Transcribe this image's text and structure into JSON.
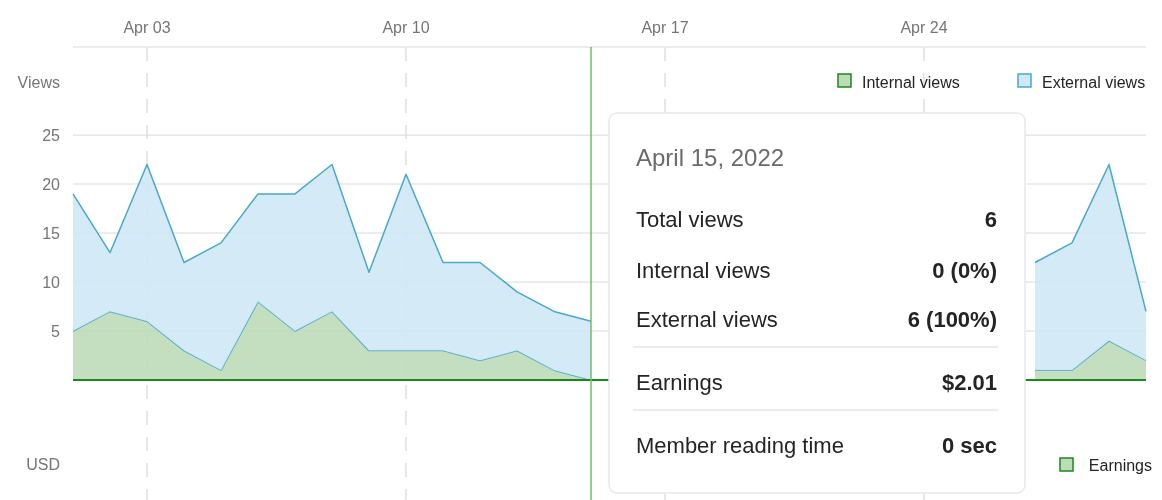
{
  "chart_data": {
    "type": "area",
    "stacked": true,
    "x": [
      "2022-04-01",
      "2022-04-02",
      "2022-04-03",
      "2022-04-04",
      "2022-04-05",
      "2022-04-06",
      "2022-04-07",
      "2022-04-08",
      "2022-04-09",
      "2022-04-10",
      "2022-04-11",
      "2022-04-12",
      "2022-04-13",
      "2022-04-14",
      "2022-04-15",
      "2022-04-16",
      "2022-04-17",
      "2022-04-18",
      "2022-04-19",
      "2022-04-20",
      "2022-04-21",
      "2022-04-22",
      "2022-04-23",
      "2022-04-24",
      "2022-04-25",
      "2022-04-26",
      "2022-04-27",
      "2022-04-28",
      "2022-04-29",
      "2022-04-30"
    ],
    "series": [
      {
        "name": "Internal views",
        "color": "#bcdbb8",
        "values": [
          5,
          7,
          6,
          3,
          1,
          8,
          5,
          7,
          3,
          3,
          3,
          2,
          3,
          1,
          0,
          null,
          null,
          null,
          null,
          null,
          null,
          null,
          null,
          null,
          null,
          null,
          1,
          1,
          4,
          2
        ]
      },
      {
        "name": "External views",
        "color": "#cfe8f5",
        "values": [
          14,
          6,
          16,
          9,
          13,
          11,
          14,
          15,
          8,
          18,
          9,
          10,
          6,
          6,
          6,
          null,
          null,
          null,
          null,
          null,
          null,
          null,
          null,
          null,
          null,
          null,
          11,
          13,
          18,
          5
        ]
      }
    ],
    "ylabel": "Views",
    "xlim": [
      "2022-04-01",
      "2022-04-30"
    ],
    "xticks": [
      {
        "value": "2022-04-03",
        "label": "Apr 03"
      },
      {
        "value": "2022-04-10",
        "label": "Apr 10"
      },
      {
        "value": "2022-04-17",
        "label": "Apr 17"
      },
      {
        "value": "2022-04-24",
        "label": "Apr 24"
      }
    ],
    "ylim": [
      0,
      34
    ],
    "yticks": [
      5,
      10,
      15,
      20,
      25
    ],
    "grid": true,
    "legend": "top right",
    "ref_lines": [
      {
        "axis": "x",
        "value": "2022-04-15",
        "color": "#6cbf6c"
      }
    ],
    "annotations": [
      "April 15, 2022",
      "Total views",
      "6",
      "Internal views",
      "0 (0%)",
      "External views",
      "6 (100%)",
      "Earnings",
      "$2.01",
      "Member reading time",
      "0 sec",
      "USD",
      "Earnings"
    ]
  }
}
